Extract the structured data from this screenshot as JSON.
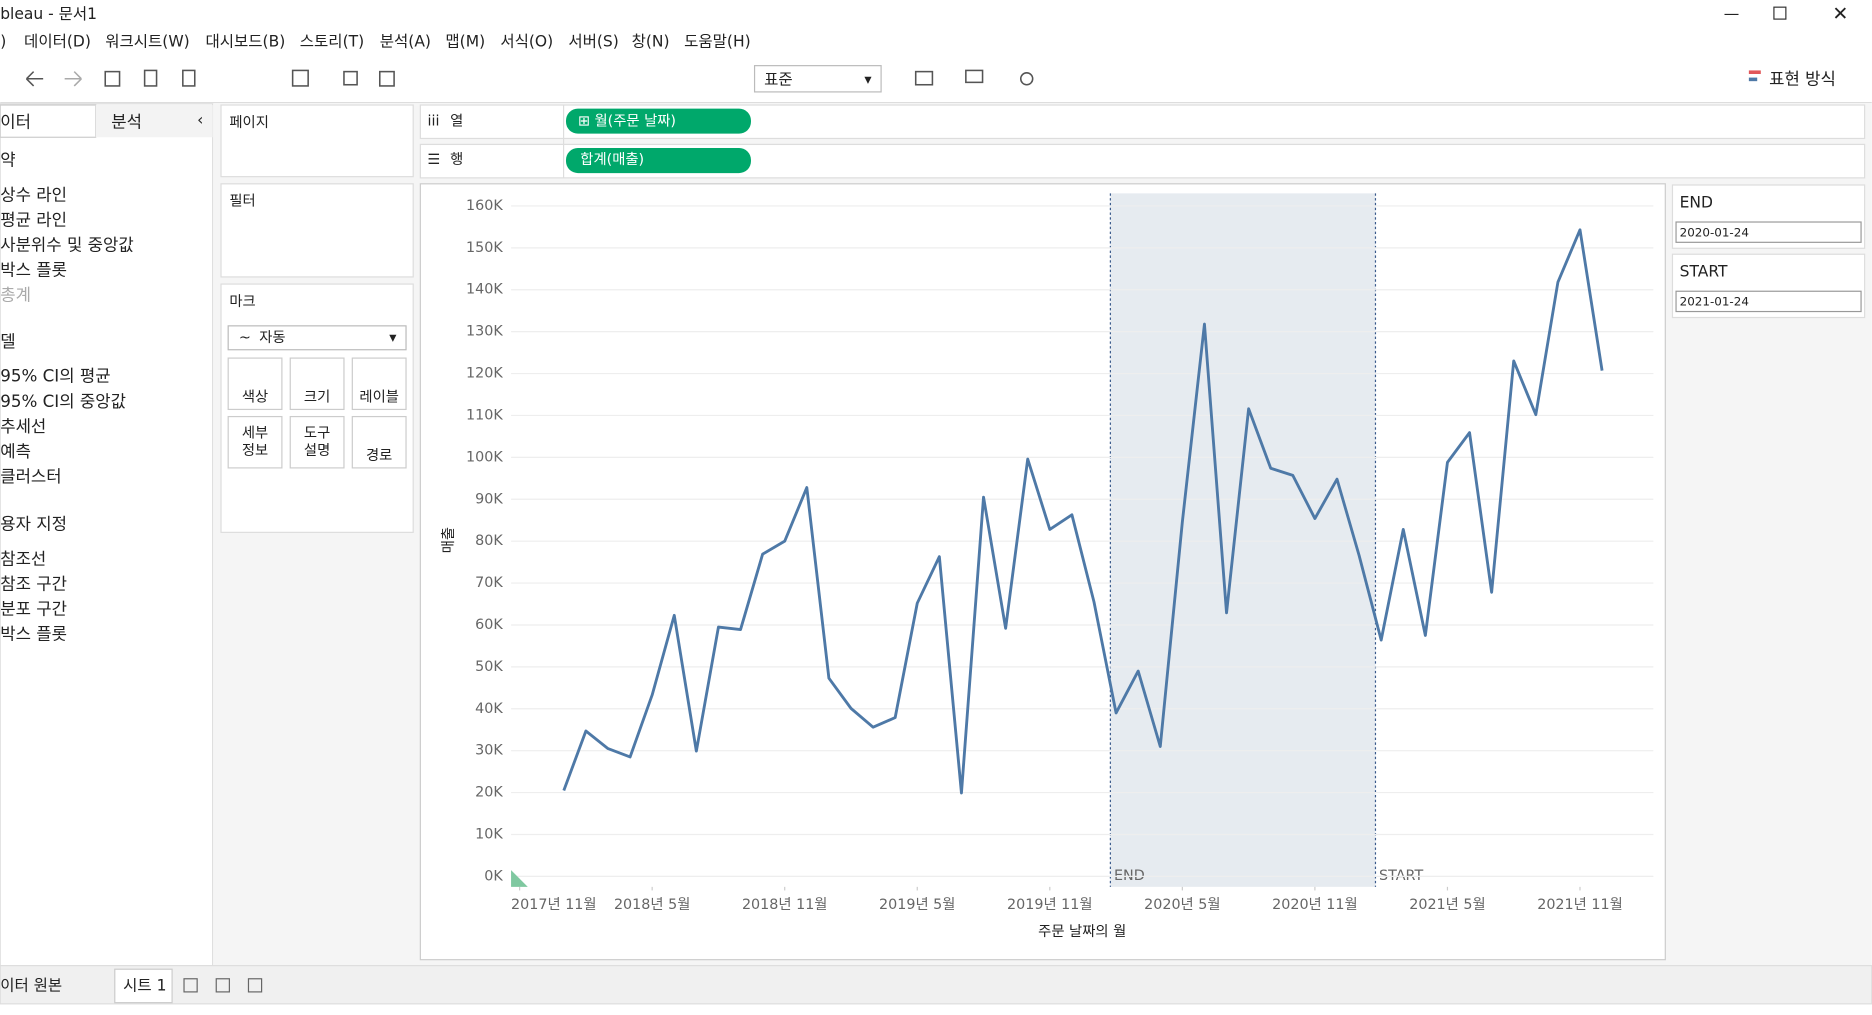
{
  "window": {
    "title": "bleau - 문서1"
  },
  "menu": [
    ")",
    "데이터(D)",
    "워크시트(W)",
    "대시보드(B)",
    "스토리(T)",
    "분석(A)",
    "맵(M)",
    "서식(O)",
    "서버(S)",
    "창(N)",
    "도움말(H)"
  ],
  "toolbar": {
    "fit": "표준",
    "show_me": "표현 방식"
  },
  "side": {
    "tabs": [
      "이터",
      "분석"
    ],
    "items": [
      "약",
      "상수 라인",
      "평균 라인",
      "사분위수 및 중앙값",
      "박스 플롯",
      "총계",
      "델",
      "95% CI의 평균",
      "95% CI의 중앙값",
      "추세선",
      "예측",
      "클러스터",
      "용자 지정",
      "참조선",
      "참조 구간",
      "분포 구간",
      "박스 플롯"
    ]
  },
  "cards": {
    "pages": "페이지",
    "filters": "필터",
    "marks": "마크",
    "mark_type": "자동",
    "buttons": [
      "색상",
      "크기",
      "레이블",
      "세부\n정보",
      "도구\n설명",
      "경로"
    ]
  },
  "shelves": {
    "columns": "열",
    "rows": "행",
    "columns_pill": "⊞ 월(주문 날짜)",
    "rows_pill": "합계(매출)"
  },
  "parameters": [
    {
      "name": "END",
      "value": "2020-01-24"
    },
    {
      "name": "START",
      "value": "2021-01-24"
    }
  ],
  "tabs": {
    "source": "이터 원본",
    "sheet": "시트 1"
  },
  "chart_data": {
    "type": "line",
    "y_label": "매출",
    "x_label": "주문 날짜의 월",
    "color": "#4e79a7",
    "grid": true,
    "x": [
      "2018-01",
      "2018-02",
      "2018-03",
      "2018-04",
      "2018-05",
      "2018-06",
      "2018-07",
      "2018-08",
      "2018-09",
      "2018-10",
      "2018-11",
      "2018-12",
      "2019-01",
      "2019-02",
      "2019-03",
      "2019-04",
      "2019-05",
      "2019-06",
      "2019-07",
      "2019-08",
      "2019-09",
      "2019-10",
      "2019-11",
      "2019-12",
      "2020-01",
      "2020-02",
      "2020-03",
      "2020-04",
      "2020-05",
      "2020-06",
      "2020-07",
      "2020-08",
      "2020-09",
      "2020-10",
      "2020-11",
      "2020-12",
      "2021-01",
      "2021-02",
      "2021-03",
      "2021-04",
      "2021-05",
      "2021-06",
      "2021-07",
      "2021-08",
      "2021-09",
      "2021-10",
      "2021-11",
      "2021-12"
    ],
    "series": [
      {
        "name": "합계(매출)",
        "color": "#4e79a7",
        "values": [
          20500,
          34700,
          30500,
          28500,
          43300,
          62300,
          29900,
          59500,
          58900,
          76900,
          80000,
          92800,
          47300,
          40100,
          35600,
          37900,
          65200,
          76300,
          19900,
          90500,
          59200,
          99600,
          82800,
          86300,
          65500,
          39000,
          49000,
          31000,
          84600,
          131800,
          62900,
          111600,
          97400,
          95700,
          85400,
          94800,
          76600,
          56400,
          82800,
          57500,
          98800,
          105900,
          67800,
          123000,
          110200,
          141800,
          154300,
          120700
        ]
      }
    ],
    "band": {
      "from": "2020-01-24",
      "to": "2021-01-24",
      "from_label": "END",
      "to_label": "START",
      "color": "#e6ebf0"
    },
    "xlim": [
      "2017-10-20",
      "2022-02-10"
    ],
    "xticks": [
      {
        "value": "2017-11",
        "label": "2017년 11월"
      },
      {
        "value": "2018-05",
        "label": "2018년 5월"
      },
      {
        "value": "2018-11",
        "label": "2018년 11월"
      },
      {
        "value": "2019-05",
        "label": "2019년 5월"
      },
      {
        "value": "2019-11",
        "label": "2019년 11월"
      },
      {
        "value": "2020-05",
        "label": "2020년 5월"
      },
      {
        "value": "2020-11",
        "label": "2020년 11월"
      },
      {
        "value": "2021-05",
        "label": "2021년 5월"
      },
      {
        "value": "2021-11",
        "label": "2021년 11월"
      }
    ],
    "ylim": [
      -2500,
      163000
    ],
    "yticks": [
      {
        "value": 0,
        "label": "0K"
      },
      {
        "value": 10000,
        "label": "10K"
      },
      {
        "value": 20000,
        "label": "20K"
      },
      {
        "value": 30000,
        "label": "30K"
      },
      {
        "value": 40000,
        "label": "40K"
      },
      {
        "value": 50000,
        "label": "50K"
      },
      {
        "value": 60000,
        "label": "60K"
      },
      {
        "value": 70000,
        "label": "70K"
      },
      {
        "value": 80000,
        "label": "80K"
      },
      {
        "value": 90000,
        "label": "90K"
      },
      {
        "value": 100000,
        "label": "100K"
      },
      {
        "value": 110000,
        "label": "110K"
      },
      {
        "value": 120000,
        "label": "120K"
      },
      {
        "value": 130000,
        "label": "130K"
      },
      {
        "value": 140000,
        "label": "140K"
      },
      {
        "value": 150000,
        "label": "150K"
      },
      {
        "value": 160000,
        "label": "160K"
      }
    ]
  }
}
